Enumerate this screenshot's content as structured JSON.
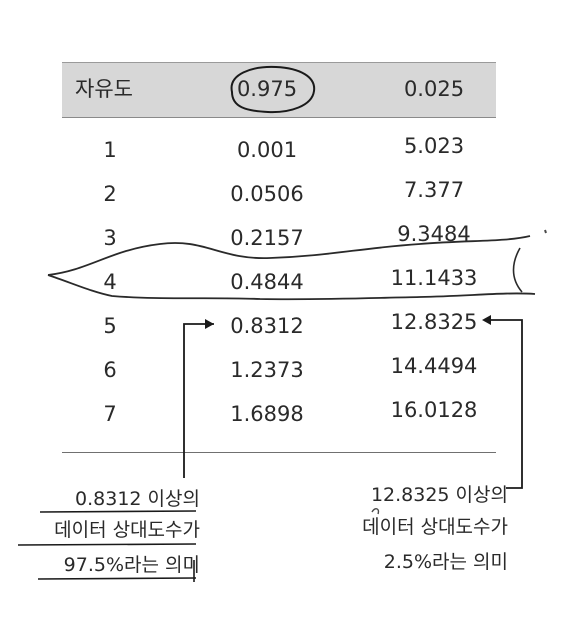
{
  "table": {
    "headers": [
      "자유도",
      "0.975",
      "0.025"
    ],
    "rows": [
      [
        "1",
        "0.001",
        "5.023"
      ],
      [
        "2",
        "0.0506",
        "7.377"
      ],
      [
        "3",
        "0.2157",
        "9.3484"
      ],
      [
        "4",
        "0.4844",
        "11.1433"
      ],
      [
        "5",
        "0.8312",
        "12.8325"
      ],
      [
        "6",
        "1.2373",
        "14.4494"
      ],
      [
        "7",
        "1.6898",
        "16.0128"
      ]
    ]
  },
  "notes": {
    "left": [
      "0.8312 이상의",
      "데이터 상대도수가",
      "97.5%라는 의미"
    ],
    "right": [
      "12.8325 이상의",
      "데이터 상대도수가",
      "2.5%라는 의미"
    ]
  },
  "colors": {
    "header_band": "#d7d7d7",
    "ink": "#1a1a1a"
  }
}
